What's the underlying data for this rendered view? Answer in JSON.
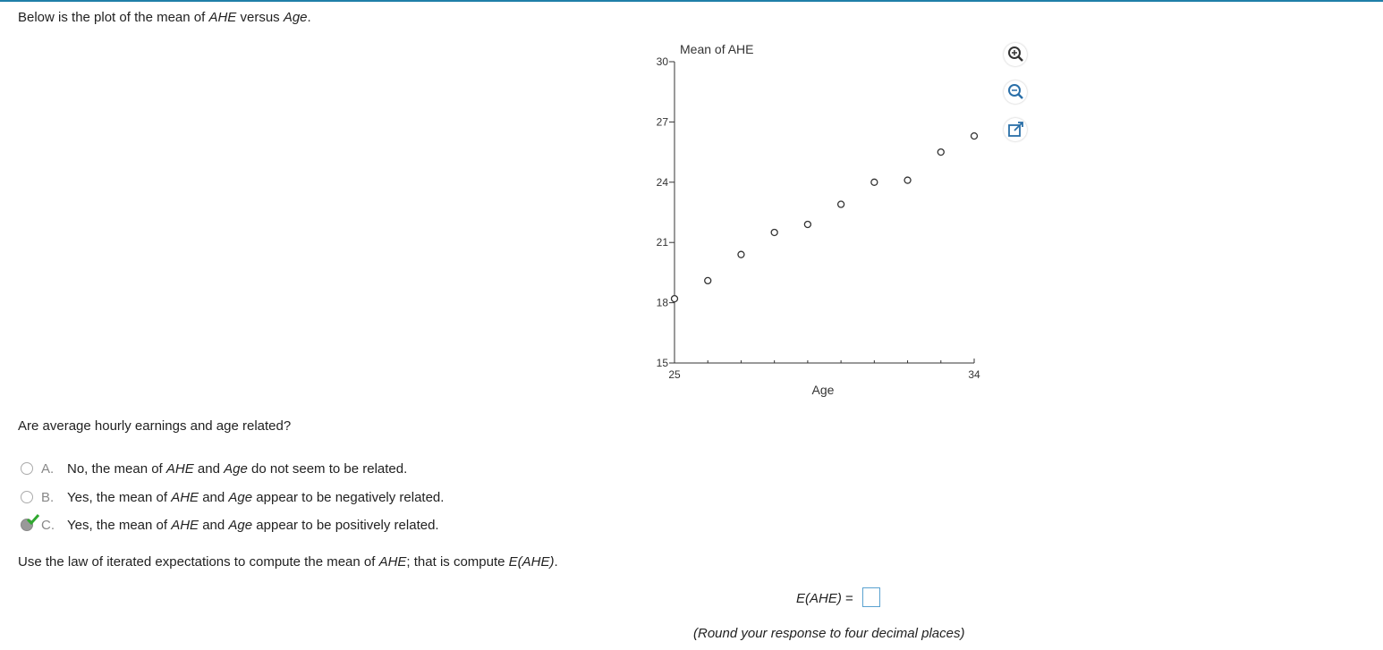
{
  "intro": [
    "Below is the plot of the mean of ",
    "AHE",
    " versus ",
    "Age",
    "."
  ],
  "chart_data": {
    "type": "scatter",
    "y_label": "Mean of AHE",
    "x_label": "Age",
    "x": [
      25,
      26,
      27,
      28,
      29,
      30,
      31,
      32,
      33,
      34
    ],
    "values": [
      18.2,
      19.1,
      20.4,
      21.5,
      21.9,
      22.9,
      24.0,
      24.1,
      25.5,
      26.3
    ],
    "xlim": [
      25,
      34
    ],
    "ylim": [
      15,
      30
    ],
    "xticks": [
      25,
      34
    ],
    "yticks": [
      15,
      18,
      21,
      24,
      27,
      30
    ],
    "color": "#333333",
    "grid": false
  },
  "question": "Are average hourly earnings and age related?",
  "options": [
    {
      "letter": "A.",
      "text": [
        "No, the mean of ",
        "AHE",
        " and ",
        "Age",
        " do not seem to be related."
      ]
    },
    {
      "letter": "B.",
      "text": [
        "Yes, the mean of ",
        "AHE",
        " and ",
        "Age",
        " appear to be negatively related."
      ]
    },
    {
      "letter": "C.",
      "text": [
        "Yes, the mean of ",
        "AHE",
        " and ",
        "Age",
        " appear to be positively related."
      ]
    }
  ],
  "instruction": [
    "Use the law of iterated expectations to compute the mean of ",
    "AHE",
    "; that is compute ",
    "E(AHE)",
    "."
  ],
  "answer_prompt": [
    "E(AHE)",
    " ="
  ],
  "note": "(Round your response to four decimal places)"
}
